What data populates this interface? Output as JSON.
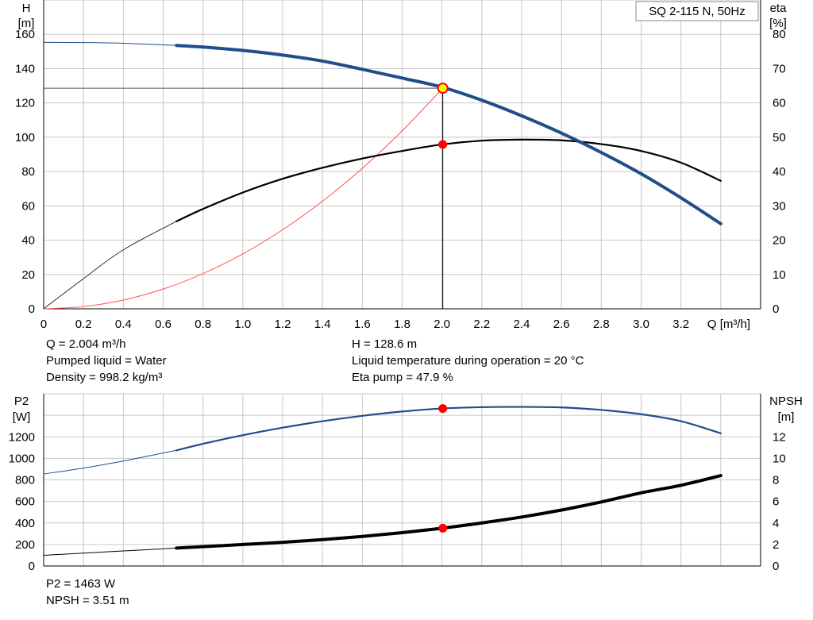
{
  "legend_title": "SQ 2-115 N, 50Hz",
  "colors": {
    "grid": "#c8c8c8",
    "head_curve": "#1f4e89",
    "power_curve": "#1f4e89",
    "eff_curve": "#000000",
    "npsh_curve": "#000000",
    "system_curve": "#ff5050",
    "duty_point": "#ff0000",
    "duty_point_head": "#ffff00"
  },
  "chart_data": [
    {
      "type": "line",
      "xlabel": "Q [m³/h]",
      "x_ticks": [
        "0",
        "0.2",
        "0.4",
        "0.6",
        "0.8",
        "1.0",
        "1.2",
        "1.4",
        "1.6",
        "1.8",
        "2.0",
        "2.2",
        "2.4",
        "2.6",
        "2.8",
        "3.0",
        "3.2"
      ],
      "xlim": [
        0,
        3.6
      ],
      "y_left": {
        "label_line1": "H",
        "label_line2": "[m]",
        "ticks": [
          "0",
          "20",
          "40",
          "60",
          "80",
          "100",
          "120",
          "140",
          "160"
        ],
        "ylim": [
          0,
          180
        ]
      },
      "y_right": {
        "label_line1": "eta",
        "label_line2": "[%]",
        "ticks": [
          "0",
          "10",
          "20",
          "30",
          "40",
          "50",
          "60",
          "70",
          "80"
        ],
        "ylim": [
          0,
          90
        ]
      },
      "grid": true,
      "series": [
        {
          "name": "H",
          "axis": "left",
          "x": [
            0,
            0.2,
            0.4,
            0.667,
            0.8,
            1.0,
            1.2,
            1.4,
            1.6,
            1.8,
            2.0,
            2.2,
            2.4,
            2.6,
            2.8,
            3.0,
            3.2,
            3.4
          ],
          "y": [
            155.3,
            155.2,
            154.8,
            153.5,
            152.6,
            150.6,
            147.9,
            144.4,
            139.6,
            134.5,
            129.2,
            121.6,
            112.5,
            102.4,
            91.1,
            78.7,
            64.7,
            49.6
          ],
          "thin_until": 0.667
        },
        {
          "name": "eta",
          "axis": "right",
          "x": [
            0,
            0.2,
            0.4,
            0.667,
            0.8,
            1.0,
            1.2,
            1.4,
            1.6,
            1.8,
            2.0,
            2.2,
            2.4,
            2.6,
            2.8,
            3.0,
            3.2,
            3.4
          ],
          "y": [
            0,
            8.8,
            17.2,
            25.5,
            29.1,
            33.9,
            37.9,
            41.1,
            43.8,
            46.0,
            47.9,
            49.0,
            49.3,
            49.1,
            48.0,
            46.0,
            42.6,
            37.3
          ],
          "thin_until": 0.667
        },
        {
          "name": "system curve",
          "axis": "left",
          "x": [
            0,
            0.2,
            0.4,
            0.6,
            0.8,
            1.0,
            1.2,
            1.4,
            1.6,
            1.8,
            2.004
          ],
          "y": [
            0,
            1.3,
            5.1,
            11.5,
            20.5,
            32.0,
            46.1,
            62.7,
            81.9,
            103.7,
            128.6
          ]
        }
      ],
      "duty_point": {
        "Q": 2.004,
        "H": 128.6,
        "eta": 47.9
      }
    },
    {
      "type": "line",
      "xlim": [
        0,
        3.6
      ],
      "y_left": {
        "label_line1": "P2",
        "label_line2": "[W]",
        "ticks": [
          "0",
          "200",
          "400",
          "600",
          "800",
          "1000",
          "1200"
        ],
        "ylim": [
          0,
          1600
        ]
      },
      "y_right": {
        "label_line1": "NPSH",
        "label_line2": "[m]",
        "ticks": [
          "0",
          "2",
          "4",
          "6",
          "8",
          "10",
          "12"
        ],
        "ylim": [
          0,
          16
        ]
      },
      "grid": true,
      "series": [
        {
          "name": "P2",
          "axis": "left",
          "x": [
            0,
            0.2,
            0.4,
            0.667,
            0.8,
            1.0,
            1.2,
            1.4,
            1.6,
            1.8,
            2.0,
            2.2,
            2.4,
            2.6,
            2.8,
            3.0,
            3.2,
            3.4
          ],
          "y": [
            855,
            910,
            975,
            1075,
            1135,
            1215,
            1285,
            1345,
            1395,
            1435,
            1463,
            1475,
            1478,
            1473,
            1450,
            1410,
            1345,
            1233
          ],
          "thin_until": 0.667
        },
        {
          "name": "NPSH",
          "axis": "right",
          "x": [
            0,
            0.2,
            0.4,
            0.667,
            0.8,
            1.0,
            1.2,
            1.4,
            1.6,
            1.8,
            2.0,
            2.2,
            2.4,
            2.6,
            2.8,
            3.0,
            3.2,
            3.4
          ],
          "y": [
            1.0,
            1.2,
            1.4,
            1.67,
            1.8,
            2.0,
            2.2,
            2.45,
            2.75,
            3.1,
            3.51,
            4.0,
            4.55,
            5.2,
            5.95,
            6.8,
            7.5,
            8.4
          ],
          "thin_until": 0.667
        }
      ],
      "duty_point": {
        "Q": 2.004,
        "P2": 1463,
        "NPSH": 3.51
      }
    }
  ],
  "info_top": {
    "q": "Q = 2.004 m³/h",
    "liquid": "Pumped liquid = Water",
    "density": "Density = 998.2 kg/m³",
    "h": "H = 128.6 m",
    "temp": "Liquid temperature during operation = 20 °C",
    "eta": "Eta pump = 47.9 %"
  },
  "info_bottom": {
    "p2": "P2 = 1463 W",
    "npsh": "NPSH = 3.51 m"
  }
}
